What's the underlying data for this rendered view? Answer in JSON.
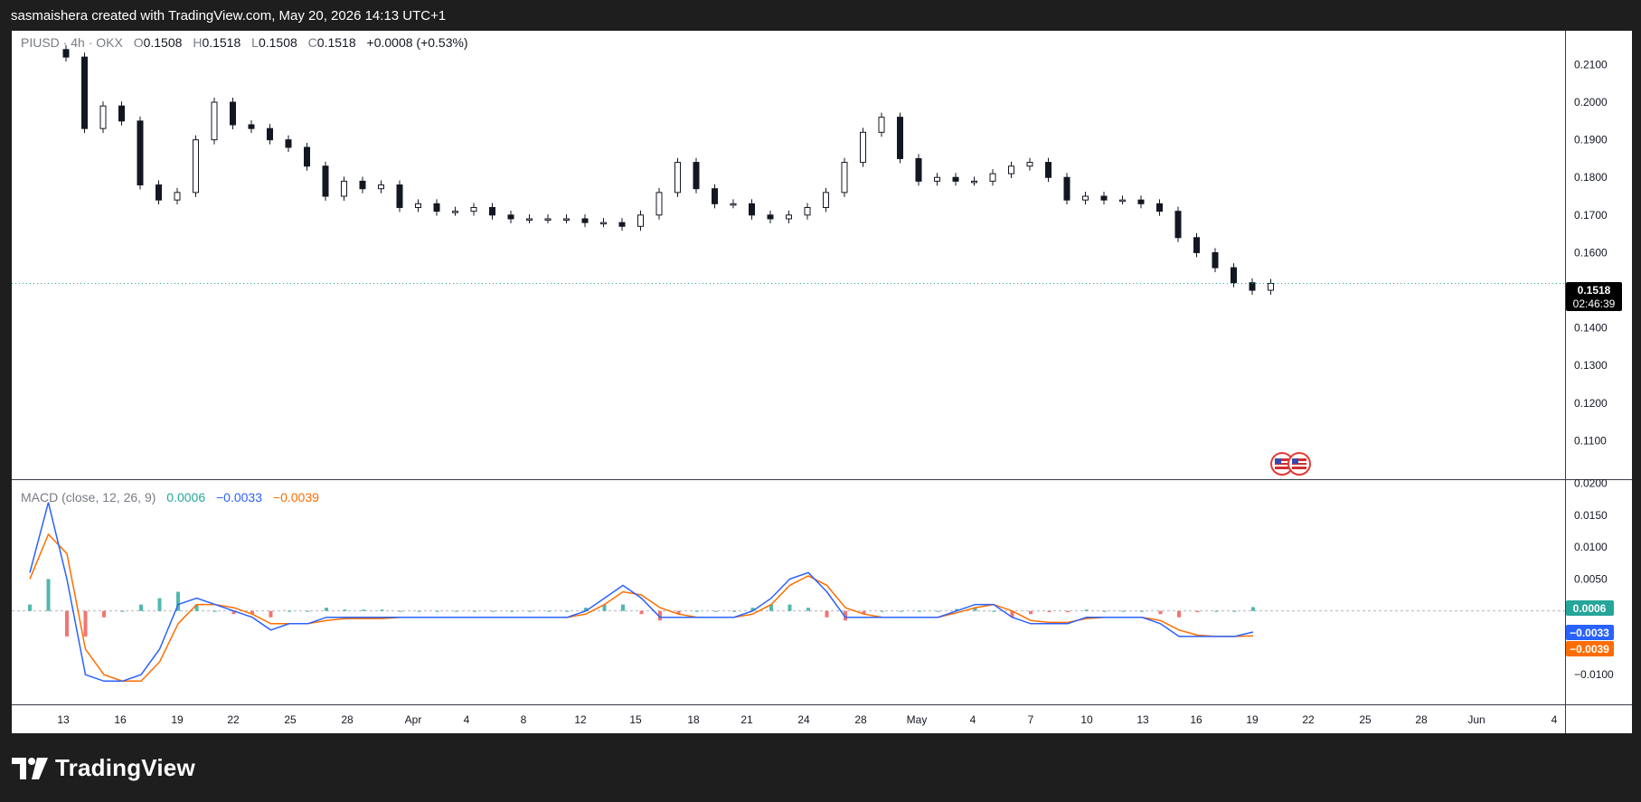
{
  "watermark": "sasmaishera created with TradingView.com, May 20, 2026 14:13 UTC+1",
  "brand": "TradingView",
  "colors": {
    "up": "#26a69a",
    "down": "#ef5350",
    "macd_line": "#2962ff",
    "signal_line": "#ff6d00",
    "price_label_bg": "#000000"
  },
  "icons": [
    "tradingview-logo-icon",
    "us-flag-event-icon"
  ],
  "price_legend": {
    "symbol": "PIUSD · 4h · OKX",
    "o_label": "O",
    "o_value": "0.1508",
    "h_label": "H",
    "h_value": "0.1518",
    "l_label": "L",
    "l_value": "0.1508",
    "c_label": "C",
    "c_value": "0.1518",
    "change": "+0.0008 (+0.53%)"
  },
  "macd_legend": {
    "title": "MACD (close, 12, 26, 9)",
    "histogram": "0.0006",
    "macd": "−0.0033",
    "signal": "−0.0039"
  },
  "price_badge": {
    "price": "0.1518",
    "countdown": "02:46:39"
  },
  "macd_badges": {
    "histogram": "0.0006",
    "macd": "−0.0033",
    "signal": "−0.0039"
  },
  "chart_data": [
    {
      "type": "line",
      "title": "PIUSD · 4h · OKX",
      "ylim": [
        0.1,
        0.219
      ],
      "y_ticks": [
        "0.2100",
        "0.2000",
        "0.1900",
        "0.1800",
        "0.1700",
        "0.1600",
        "0.1400",
        "0.1300",
        "0.1200",
        "0.1100"
      ],
      "x_ticks": [
        "13",
        "16",
        "19",
        "22",
        "25",
        "28",
        "Apr",
        "4",
        "8",
        "12",
        "15",
        "18",
        "21",
        "24",
        "28",
        "May",
        "4",
        "7",
        "10",
        "13",
        "16",
        "19",
        "22",
        "25",
        "28",
        "Jun",
        "4"
      ],
      "grid": false,
      "last_price": 0.1518,
      "series": [
        {
          "x": [
            "13",
            "14",
            "15",
            "16",
            "17",
            "18",
            "19",
            "20",
            "21",
            "22",
            "23",
            "24",
            "25",
            "26",
            "27",
            "28",
            "Apr",
            "2",
            "3",
            "4",
            "5",
            "6",
            "7",
            "8",
            "9",
            "10",
            "11",
            "12",
            "13",
            "14",
            "15",
            "16",
            "17",
            "18",
            "19",
            "20",
            "21",
            "22",
            "23",
            "24",
            "25",
            "26",
            "27",
            "28",
            "29",
            "30",
            "May",
            "2",
            "3",
            "4",
            "5",
            "6",
            "7",
            "8",
            "9",
            "10",
            "11",
            "12",
            "13",
            "14",
            "15",
            "16",
            "17",
            "18",
            "19",
            "20"
          ],
          "y": [
            0.212,
            0.193,
            0.199,
            0.195,
            0.178,
            0.174,
            0.176,
            0.19,
            0.2,
            0.194,
            0.193,
            0.19,
            0.188,
            0.183,
            0.175,
            0.179,
            0.177,
            0.178,
            0.172,
            0.173,
            0.171,
            0.171,
            0.172,
            0.17,
            0.169,
            0.169,
            0.169,
            0.169,
            0.168,
            0.168,
            0.167,
            0.17,
            0.176,
            0.184,
            0.177,
            0.173,
            0.173,
            0.17,
            0.169,
            0.17,
            0.172,
            0.176,
            0.184,
            0.192,
            0.196,
            0.185,
            0.179,
            0.18,
            0.179,
            0.179,
            0.181,
            0.183,
            0.184,
            0.18,
            0.174,
            0.175,
            0.174,
            0.174,
            0.173,
            0.171,
            0.164,
            0.16,
            0.156,
            0.152,
            0.15,
            0.1518
          ]
        }
      ]
    },
    {
      "type": "line",
      "title": "MACD (close, 12, 26, 9)",
      "ylim": [
        -0.0145,
        0.0205
      ],
      "y_ticks": [
        "0.0200",
        "0.0150",
        "0.0100",
        "0.0050",
        "−0.0100"
      ],
      "grid": false,
      "series": [
        {
          "name": "MACD",
          "x": [
            "12",
            "13",
            "14",
            "15",
            "16",
            "17",
            "18",
            "19",
            "20",
            "21",
            "22",
            "23",
            "24",
            "25",
            "26",
            "27",
            "28",
            "Apr",
            "2",
            "3",
            "4",
            "5",
            "6",
            "7",
            "8",
            "9",
            "10",
            "11",
            "12",
            "13",
            "14",
            "15",
            "16",
            "17",
            "18",
            "19",
            "20",
            "21",
            "22",
            "23",
            "24",
            "25",
            "26",
            "27",
            "28",
            "29",
            "30",
            "May",
            "2",
            "3",
            "4",
            "5",
            "6",
            "7",
            "8",
            "9",
            "10",
            "11",
            "12",
            "13",
            "14",
            "15",
            "16",
            "17",
            "18",
            "19",
            "20"
          ],
          "y": [
            0.006,
            0.017,
            0.005,
            -0.01,
            -0.011,
            -0.011,
            -0.01,
            -0.006,
            0.001,
            0.002,
            0.001,
            0.0,
            -0.001,
            -0.003,
            -0.002,
            -0.002,
            -0.001,
            -0.001,
            -0.001,
            -0.001,
            -0.001,
            -0.001,
            -0.001,
            -0.001,
            -0.001,
            -0.001,
            -0.001,
            -0.001,
            -0.001,
            -0.001,
            0.0,
            0.002,
            0.004,
            0.002,
            -0.001,
            -0.001,
            -0.001,
            -0.001,
            -0.001,
            0.0,
            0.002,
            0.005,
            0.006,
            0.003,
            -0.001,
            -0.001,
            -0.001,
            -0.001,
            -0.001,
            -0.001,
            0.0,
            0.001,
            0.001,
            -0.001,
            -0.002,
            -0.002,
            -0.002,
            -0.001,
            -0.001,
            -0.001,
            -0.001,
            -0.002,
            -0.004,
            -0.004,
            -0.004,
            -0.004,
            -0.0033
          ]
        },
        {
          "name": "Signal",
          "x": [
            "12",
            "13",
            "14",
            "15",
            "16",
            "17",
            "18",
            "19",
            "20",
            "21",
            "22",
            "23",
            "24",
            "25",
            "26",
            "27",
            "28",
            "Apr",
            "2",
            "3",
            "4",
            "5",
            "6",
            "7",
            "8",
            "9",
            "10",
            "11",
            "12",
            "13",
            "14",
            "15",
            "16",
            "17",
            "18",
            "19",
            "20",
            "21",
            "22",
            "23",
            "24",
            "25",
            "26",
            "27",
            "28",
            "29",
            "30",
            "May",
            "2",
            "3",
            "4",
            "5",
            "6",
            "7",
            "8",
            "9",
            "10",
            "11",
            "12",
            "13",
            "14",
            "15",
            "16",
            "17",
            "18",
            "19",
            "20"
          ],
          "y": [
            0.005,
            0.012,
            0.009,
            -0.006,
            -0.01,
            -0.011,
            -0.011,
            -0.008,
            -0.002,
            0.001,
            0.001,
            0.0005,
            -0.0005,
            -0.002,
            -0.002,
            -0.002,
            -0.0015,
            -0.0012,
            -0.0012,
            -0.0012,
            -0.001,
            -0.001,
            -0.001,
            -0.001,
            -0.001,
            -0.001,
            -0.001,
            -0.001,
            -0.001,
            -0.001,
            -0.0005,
            0.001,
            0.003,
            0.0025,
            0.0005,
            -0.0005,
            -0.001,
            -0.001,
            -0.001,
            -0.0005,
            0.001,
            0.004,
            0.0055,
            0.004,
            0.0005,
            -0.0005,
            -0.001,
            -0.001,
            -0.001,
            -0.001,
            -0.0003,
            0.0005,
            0.001,
            0.0,
            -0.0015,
            -0.0018,
            -0.0018,
            -0.0012,
            -0.001,
            -0.001,
            -0.001,
            -0.0015,
            -0.003,
            -0.0038,
            -0.004,
            -0.004,
            -0.0039
          ]
        }
      ]
    }
  ]
}
